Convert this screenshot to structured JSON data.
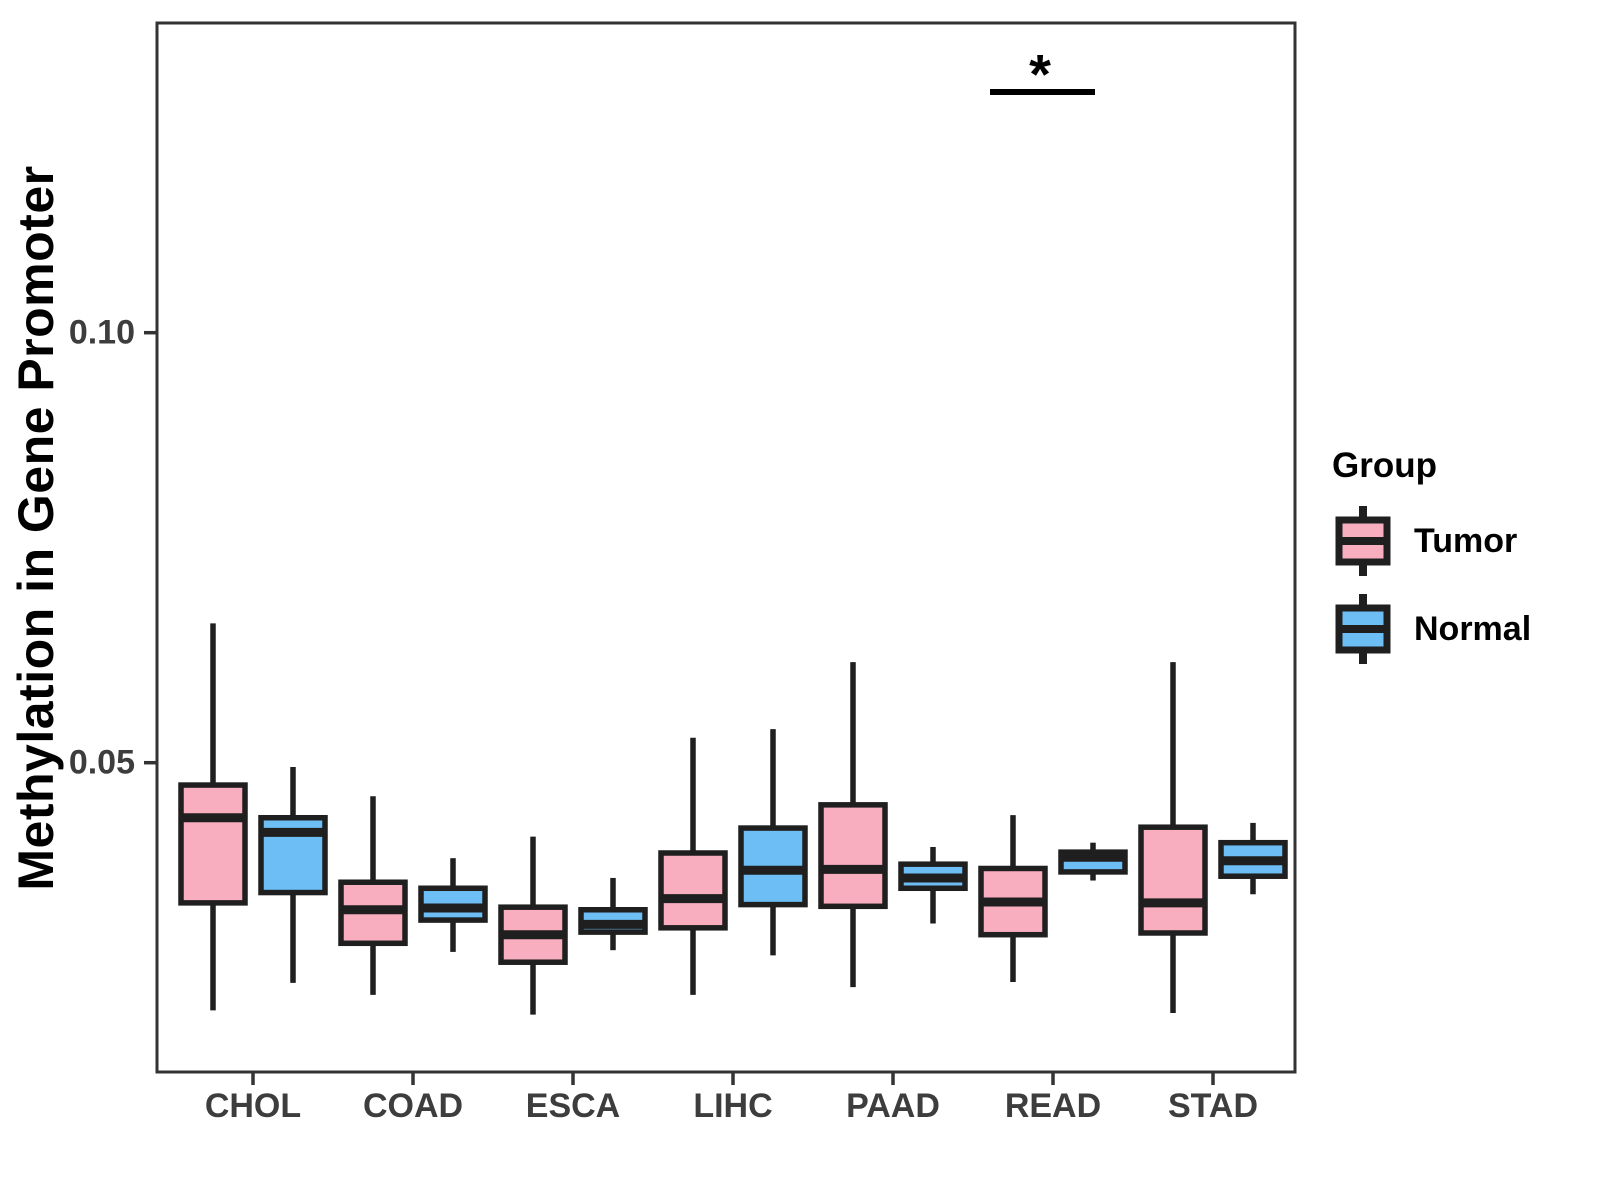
{
  "chart_data": {
    "type": "boxplot",
    "title": "",
    "xlabel": "",
    "ylabel": "Methylation in Gene Promoter",
    "categories": [
      "CHOL",
      "COAD",
      "ESCA",
      "LIHC",
      "PAAD",
      "READ",
      "STAD"
    ],
    "ylim": [
      0.014,
      0.136
    ],
    "yticks": [
      {
        "value": 0.05,
        "label": "0.05"
      },
      {
        "value": 0.1,
        "label": "0.10"
      }
    ],
    "grid": "off",
    "legend": {
      "title": "Group",
      "position": "right",
      "entries": [
        {
          "label": "Tumor",
          "color": "#F9AEC0"
        },
        {
          "label": "Normal",
          "color": "#6CBEF5"
        }
      ]
    },
    "series": [
      {
        "name": "Tumor",
        "color": "#F9AEC0",
        "boxes": [
          {
            "category": "CHOL",
            "min": 0.0212,
            "q1": 0.0337,
            "median": 0.0436,
            "q3": 0.0474,
            "max": 0.0662
          },
          {
            "category": "COAD",
            "min": 0.023,
            "q1": 0.029,
            "median": 0.0329,
            "q3": 0.0361,
            "max": 0.0461
          },
          {
            "category": "ESCA",
            "min": 0.0207,
            "q1": 0.0268,
            "median": 0.03,
            "q3": 0.0332,
            "max": 0.0414
          },
          {
            "category": "LIHC",
            "min": 0.023,
            "q1": 0.0308,
            "median": 0.0342,
            "q3": 0.0395,
            "max": 0.0529
          },
          {
            "category": "PAAD",
            "min": 0.0239,
            "q1": 0.0333,
            "median": 0.0376,
            "q3": 0.0451,
            "max": 0.0617
          },
          {
            "category": "READ",
            "min": 0.0245,
            "q1": 0.03,
            "median": 0.0338,
            "q3": 0.0377,
            "max": 0.0439
          },
          {
            "category": "STAD",
            "min": 0.0209,
            "q1": 0.0302,
            "median": 0.0337,
            "q3": 0.0425,
            "max": 0.0617
          }
        ]
      },
      {
        "name": "Normal",
        "color": "#6CBEF5",
        "boxes": [
          {
            "category": "CHOL",
            "min": 0.0244,
            "q1": 0.0349,
            "median": 0.0419,
            "q3": 0.0436,
            "max": 0.0495
          },
          {
            "category": "COAD",
            "min": 0.028,
            "q1": 0.0317,
            "median": 0.0331,
            "q3": 0.0354,
            "max": 0.0389
          },
          {
            "category": "ESCA",
            "min": 0.0282,
            "q1": 0.0303,
            "median": 0.0312,
            "q3": 0.0329,
            "max": 0.0366
          },
          {
            "category": "LIHC",
            "min": 0.0276,
            "q1": 0.0335,
            "median": 0.0375,
            "q3": 0.0424,
            "max": 0.0539
          },
          {
            "category": "PAAD",
            "min": 0.0313,
            "q1": 0.0354,
            "median": 0.0366,
            "q3": 0.0382,
            "max": 0.0402
          },
          {
            "category": "READ",
            "min": 0.0363,
            "q1": 0.0373,
            "median": 0.039,
            "q3": 0.0396,
            "max": 0.0407
          },
          {
            "category": "STAD",
            "min": 0.0347,
            "q1": 0.0368,
            "median": 0.0386,
            "q3": 0.0407,
            "max": 0.043
          }
        ]
      }
    ],
    "annotations": [
      {
        "type": "significance",
        "label": "*",
        "category": "READ",
        "between": [
          "Tumor",
          "Normal"
        ]
      }
    ],
    "colors": {
      "box_line": "#1F1F1F",
      "panel_border": "#333333",
      "tick_text": "#3D3D3D",
      "annotation": "#000000"
    }
  }
}
